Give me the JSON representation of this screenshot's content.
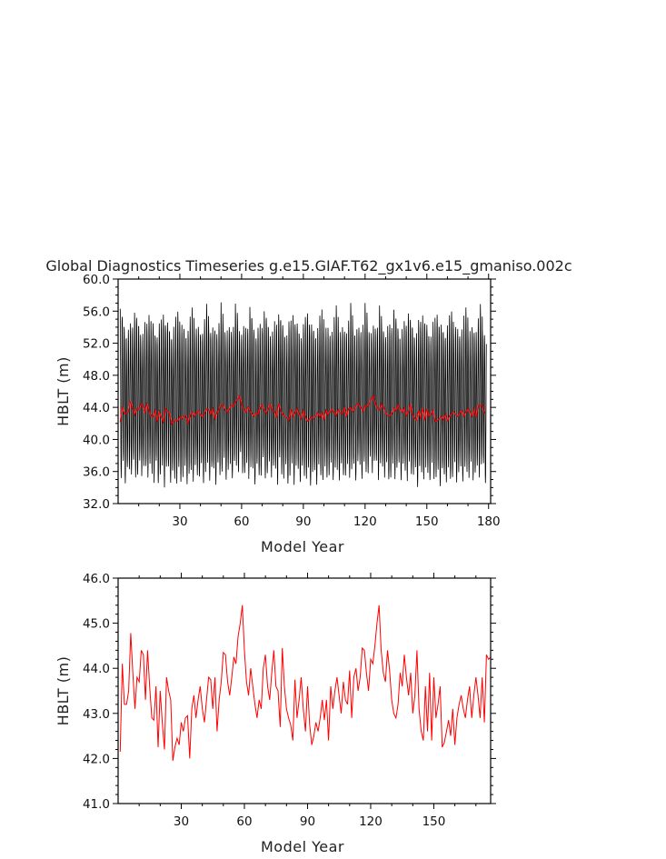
{
  "title": "Global Diagnostics Timeseries g.e15.GIAF.T62_gx1v6.e15_gmaniso.002c",
  "colors": {
    "monthly": "#000000",
    "annual": "#ff0000",
    "frame": "#000000"
  },
  "chart_data": [
    {
      "type": "line",
      "xlabel": "Model Year",
      "ylabel": "HBLT (m)",
      "xlim": [
        0,
        181
      ],
      "ylim": [
        32.0,
        60.0
      ],
      "xticks": [
        30,
        60,
        90,
        120,
        150,
        180
      ],
      "yticks": [
        "32.0",
        "36.0",
        "40.0",
        "44.0",
        "48.0",
        "52.0",
        "56.0",
        "60.0"
      ],
      "series": [
        {
          "style": "monthly",
          "color": "#000000",
          "description_values": "monthly mean HBLT, seasonal cycle each year",
          "seasonal_min_range": [
            34.0,
            38.5
          ],
          "seasonal_max_range": [
            51.5,
            57.0
          ],
          "months_per_year": 12
        },
        {
          "style": "annual",
          "color": "#ff0000",
          "values_ref": "annual"
        }
      ]
    },
    {
      "type": "line",
      "xlabel": "Model Year",
      "ylabel": "HBLT (m)",
      "xlim": [
        0,
        177
      ],
      "ylim": [
        41.0,
        46.0
      ],
      "xticks": [
        30,
        60,
        90,
        120,
        150
      ],
      "yticks": [
        "41.0",
        "42.0",
        "43.0",
        "44.0",
        "45.0",
        "46.0"
      ],
      "series": [
        {
          "style": "annual",
          "color": "#ff0000",
          "values_ref": "annual"
        }
      ]
    }
  ],
  "annual": [
    42.15,
    44.1,
    43.2,
    43.2,
    43.5,
    44.78,
    43.9,
    43.1,
    43.8,
    43.7,
    44.4,
    44.3,
    43.3,
    44.4,
    43.6,
    42.9,
    42.85,
    43.6,
    42.25,
    43.5,
    42.8,
    42.2,
    43.8,
    43.5,
    43.3,
    41.95,
    42.25,
    42.45,
    42.3,
    42.8,
    42.6,
    42.9,
    42.95,
    42.0,
    43.1,
    43.4,
    42.9,
    43.3,
    43.6,
    43.1,
    42.8,
    43.3,
    43.8,
    43.75,
    43.1,
    43.8,
    42.6,
    43.3,
    43.7,
    44.35,
    44.3,
    43.7,
    43.4,
    43.8,
    44.25,
    44.1,
    44.7,
    45.0,
    45.4,
    44.4,
    43.7,
    43.4,
    44.0,
    43.6,
    43.2,
    42.9,
    43.3,
    43.1,
    44.0,
    44.3,
    43.6,
    43.3,
    43.9,
    44.4,
    43.6,
    43.5,
    42.7,
    44.45,
    43.6,
    43.1,
    42.9,
    42.75,
    42.4,
    43.75,
    42.9,
    43.3,
    43.8,
    43.1,
    42.6,
    43.6,
    42.75,
    42.3,
    42.5,
    42.8,
    42.6,
    42.9,
    43.3,
    42.85,
    43.3,
    42.4,
    43.6,
    43.1,
    43.5,
    43.8,
    43.4,
    43.0,
    43.7,
    43.3,
    43.2,
    43.95,
    42.9,
    43.8,
    44.0,
    43.5,
    43.8,
    44.45,
    44.4,
    43.9,
    43.5,
    44.2,
    44.1,
    44.5,
    45.0,
    45.4,
    44.4,
    43.9,
    43.7,
    44.4,
    43.95,
    43.3,
    43.0,
    42.9,
    43.2,
    43.9,
    43.6,
    44.3,
    43.8,
    43.4,
    43.9,
    43.0,
    43.4,
    44.4,
    43.1,
    42.6,
    42.4,
    43.6,
    42.6,
    43.9,
    42.4,
    43.8,
    42.9,
    43.2,
    43.6,
    42.25,
    42.35,
    42.6,
    42.85,
    42.5,
    43.1,
    42.3,
    42.9,
    43.2,
    43.4,
    43.1,
    42.9,
    43.3,
    43.6,
    42.9,
    43.4,
    43.8,
    43.4,
    42.9,
    43.8,
    42.8,
    44.3,
    44.2,
    44.25,
    43.2
  ]
}
